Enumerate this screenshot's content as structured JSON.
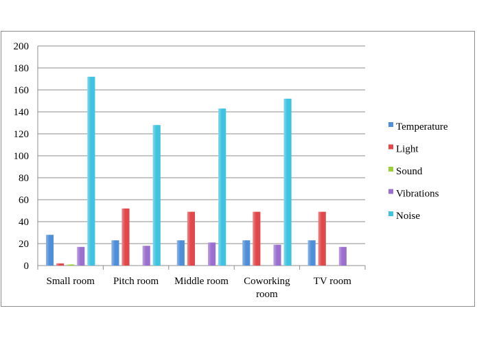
{
  "chart_data": {
    "type": "bar",
    "title": "",
    "xlabel": "",
    "ylabel": "",
    "ylim": [
      0,
      200
    ],
    "yticks": [
      0,
      20,
      40,
      60,
      80,
      100,
      120,
      140,
      160,
      180,
      200
    ],
    "grid": true,
    "legend_position": "right",
    "categories": [
      [
        "Small room"
      ],
      [
        "Pitch room"
      ],
      [
        "Middle room"
      ],
      [
        "Coworking",
        "room"
      ],
      [
        "TV room"
      ]
    ],
    "series": [
      {
        "name": "Temperature",
        "color": "#4f8fd9",
        "values": [
          28,
          23,
          23,
          23,
          23
        ]
      },
      {
        "name": "Light",
        "color": "#e0484b",
        "values": [
          2,
          52,
          49,
          49,
          49
        ]
      },
      {
        "name": "Sound",
        "color": "#9ccf3a",
        "values": [
          1,
          0,
          0,
          0,
          0
        ]
      },
      {
        "name": "Vibrations",
        "color": "#9b6fcf",
        "values": [
          17,
          18,
          21,
          19,
          17
        ]
      },
      {
        "name": "Noise",
        "color": "#3fc3e0",
        "values": [
          172,
          128,
          143,
          152,
          0
        ]
      }
    ]
  }
}
